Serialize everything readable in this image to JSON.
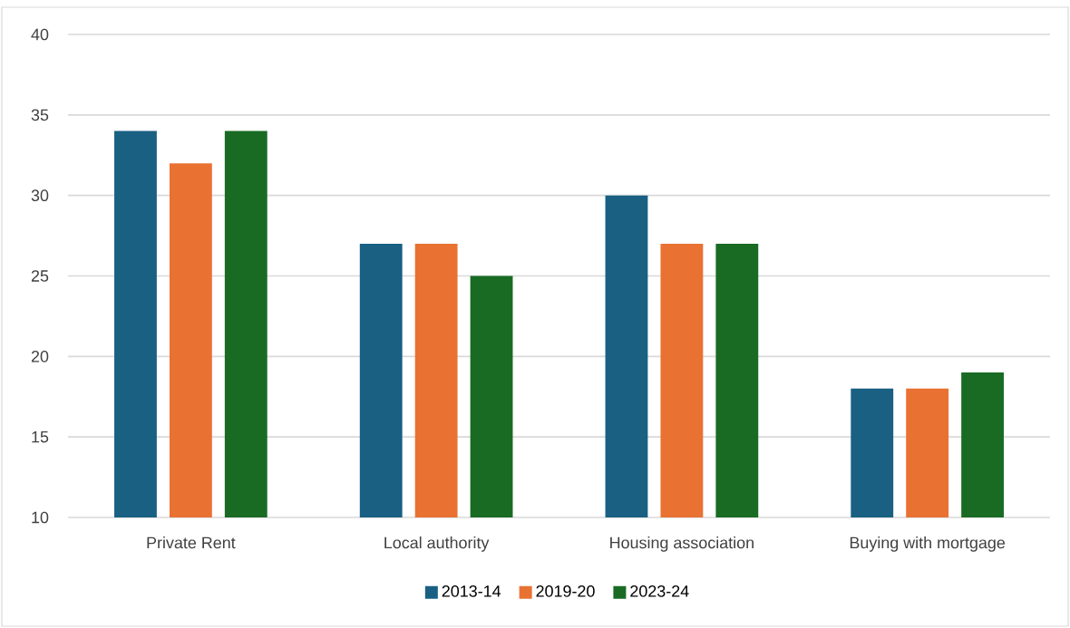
{
  "chart_data": {
    "type": "bar",
    "categories": [
      "Private Rent",
      "Local authority",
      "Housing association",
      "Buying with mortgage"
    ],
    "series": [
      {
        "name": "2013-14",
        "color": "#196083",
        "values": [
          34,
          27,
          30,
          18
        ]
      },
      {
        "name": "2019-20",
        "color": "#e97132",
        "values": [
          32,
          27,
          27,
          18
        ]
      },
      {
        "name": "2023-24",
        "color": "#196b24",
        "values": [
          34,
          25,
          27,
          19
        ]
      }
    ],
    "ylim": [
      10,
      40
    ],
    "yticks": [
      10,
      15,
      20,
      25,
      30,
      35,
      40
    ],
    "grid": "y",
    "legend": "bottom"
  }
}
